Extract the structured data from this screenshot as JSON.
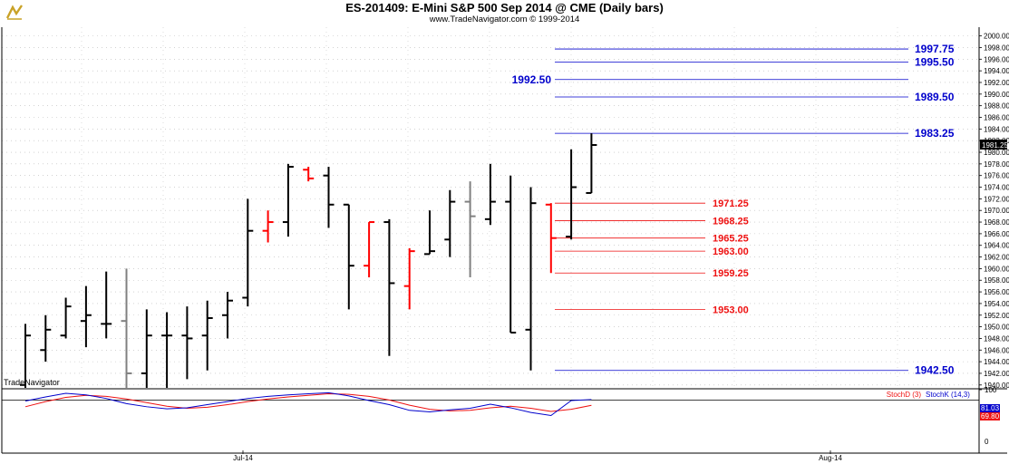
{
  "header": {
    "title": "ES-201409:  E-Mini S&P 500 Sep 2014 @ CME  (Daily bars)",
    "subtitle": "www.TradeNavigator.com © 1999-2014",
    "logo_icon": "tradenavigator-logo-icon"
  },
  "chart_data": {
    "type": "ohlc",
    "watermark": "TradeNavigator",
    "last_price_label": "1981.25",
    "x_tick_labels": [
      {
        "label": "Jul-14",
        "date": "2014-07-01"
      },
      {
        "label": "Aug-14",
        "date": "2014-08-01"
      }
    ],
    "y_ticks": [
      "2000.00",
      "1998.00",
      "1996.00",
      "1994.00",
      "1992.00",
      "1990.00",
      "1988.00",
      "1986.00",
      "1984.00",
      "1982.00",
      "1980.00",
      "1978.00",
      "1976.00",
      "1974.00",
      "1972.00",
      "1970.00",
      "1968.00",
      "1966.00",
      "1964.00",
      "1962.00",
      "1960.00",
      "1958.00",
      "1956.00",
      "1954.00",
      "1952.00",
      "1950.00",
      "1948.00",
      "1946.00",
      "1944.00",
      "1942.00",
      "1940.00"
    ],
    "ylim": [
      1939.5,
      2001.5
    ],
    "bars": [
      {
        "o": 1940.0,
        "h": 1950.5,
        "l": 1939.5,
        "c": 1948.5,
        "color": "#000000"
      },
      {
        "o": 1946.0,
        "h": 1952.0,
        "l": 1944.0,
        "c": 1949.5,
        "color": "#000000"
      },
      {
        "o": 1948.5,
        "h": 1955.0,
        "l": 1948.0,
        "c": 1953.5,
        "color": "#000000"
      },
      {
        "o": 1951.0,
        "h": 1957.0,
        "l": 1946.5,
        "c": 1952.0,
        "color": "#000000"
      },
      {
        "o": 1950.5,
        "h": 1959.5,
        "l": 1948.0,
        "c": 1950.5,
        "color": "#000000"
      },
      {
        "o": 1951.0,
        "h": 1960.0,
        "l": 1939.5,
        "c": 1942.0,
        "color": "#808080"
      },
      {
        "o": 1942.0,
        "h": 1953.0,
        "l": 1939.5,
        "c": 1948.5,
        "color": "#000000"
      },
      {
        "o": 1948.5,
        "h": 1952.5,
        "l": 1939.5,
        "c": 1948.5,
        "color": "#000000"
      },
      {
        "o": 1948.5,
        "h": 1953.5,
        "l": 1941.0,
        "c": 1948.0,
        "color": "#000000"
      },
      {
        "o": 1948.5,
        "h": 1954.5,
        "l": 1942.5,
        "c": 1951.5,
        "color": "#000000"
      },
      {
        "o": 1952.0,
        "h": 1956.0,
        "l": 1948.0,
        "c": 1954.5,
        "color": "#000000"
      },
      {
        "o": 1955.0,
        "h": 1972.0,
        "l": 1953.5,
        "c": 1966.5,
        "color": "#000000"
      },
      {
        "o": 1966.5,
        "h": 1970.0,
        "l": 1964.5,
        "c": 1968.0,
        "color": "#ff0000"
      },
      {
        "o": 1968.0,
        "h": 1978.0,
        "l": 1965.5,
        "c": 1977.5,
        "color": "#000000"
      },
      {
        "o": 1977.0,
        "h": 1977.5,
        "l": 1975.0,
        "c": 1975.5,
        "color": "#ff0000"
      },
      {
        "o": 1976.0,
        "h": 1977.5,
        "l": 1967.0,
        "c": 1971.0,
        "color": "#000000"
      },
      {
        "o": 1971.0,
        "h": 1971.0,
        "l": 1953.0,
        "c": 1960.5,
        "color": "#000000"
      },
      {
        "o": 1960.5,
        "h": 1968.0,
        "l": 1958.5,
        "c": 1968.0,
        "color": "#ff0000"
      },
      {
        "o": 1968.0,
        "h": 1968.5,
        "l": 1945.0,
        "c": 1957.5,
        "color": "#000000"
      },
      {
        "o": 1957.0,
        "h": 1963.5,
        "l": 1953.0,
        "c": 1963.0,
        "color": "#ff0000"
      },
      {
        "o": 1962.5,
        "h": 1970.0,
        "l": 1962.5,
        "c": 1963.0,
        "color": "#000000"
      },
      {
        "o": 1965.0,
        "h": 1973.5,
        "l": 1962.0,
        "c": 1971.5,
        "color": "#000000"
      },
      {
        "o": 1971.5,
        "h": 1975.0,
        "l": 1958.5,
        "c": 1969.0,
        "color": "#808080"
      },
      {
        "o": 1968.5,
        "h": 1978.0,
        "l": 1967.5,
        "c": 1971.5,
        "color": "#000000"
      },
      {
        "o": 1971.5,
        "h": 1976.0,
        "l": 1949.0,
        "c": 1949.0,
        "color": "#000000"
      },
      {
        "o": 1949.5,
        "h": 1974.0,
        "l": 1942.5,
        "c": 1971.25,
        "color": "#000000"
      },
      {
        "o": 1971.0,
        "h": 1971.25,
        "l": 1959.25,
        "c": 1965.25,
        "color": "#ff0000"
      },
      {
        "o": 1965.5,
        "h": 1980.5,
        "l": 1965.0,
        "c": 1974.0,
        "color": "#000000"
      },
      {
        "o": 1973.0,
        "h": 1983.25,
        "l": 1973.0,
        "c": 1981.25,
        "color": "#000000"
      }
    ],
    "levels": [
      {
        "value": 1997.75,
        "label": "1997.75",
        "color": "#0000cc"
      },
      {
        "value": 1995.5,
        "label": "1995.50",
        "color": "#0000cc"
      },
      {
        "value": 1992.5,
        "label": "1992.50",
        "color": "#0000cc"
      },
      {
        "value": 1989.5,
        "label": "1989.50",
        "color": "#0000cc"
      },
      {
        "value": 1983.25,
        "label": "1983.25",
        "color": "#0000cc"
      },
      {
        "value": 1971.25,
        "label": "1971.25",
        "color": "#ee1111"
      },
      {
        "value": 1968.25,
        "label": "1968.25",
        "color": "#ee1111"
      },
      {
        "value": 1965.25,
        "label": "1965.25",
        "color": "#ee1111"
      },
      {
        "value": 1963.0,
        "label": "1963.00",
        "color": "#ee1111"
      },
      {
        "value": 1959.25,
        "label": "1959.25",
        "color": "#ee1111"
      },
      {
        "value": 1953.0,
        "label": "1953.00",
        "color": "#ee1111"
      },
      {
        "value": 1942.5,
        "label": "1942.50",
        "color": "#0000cc"
      }
    ],
    "stochastic": {
      "ylim": [
        0,
        100
      ],
      "y_ticks": [
        "100",
        "0"
      ],
      "legend": [
        {
          "label": "StochD (3)",
          "color": "#ee1111"
        },
        {
          "label": "StochK (14,3)",
          "color": "#0000cc"
        }
      ],
      "reference_line": 80,
      "k_label": "81.03",
      "d_label": "69.80",
      "k_values": [
        78,
        86,
        93,
        90,
        83,
        73,
        67,
        63,
        65,
        71,
        77,
        83,
        87,
        90,
        92,
        94,
        88,
        79,
        71,
        60,
        57,
        61,
        64,
        72,
        65,
        56,
        50,
        79,
        81.03
      ],
      "d_values": [
        67,
        77,
        85,
        89,
        87,
        82,
        75,
        68,
        64,
        66,
        71,
        77,
        82,
        86,
        89,
        92,
        91,
        87,
        80,
        70,
        62,
        59,
        60,
        65,
        68,
        64,
        58,
        62,
        69.8
      ]
    }
  }
}
